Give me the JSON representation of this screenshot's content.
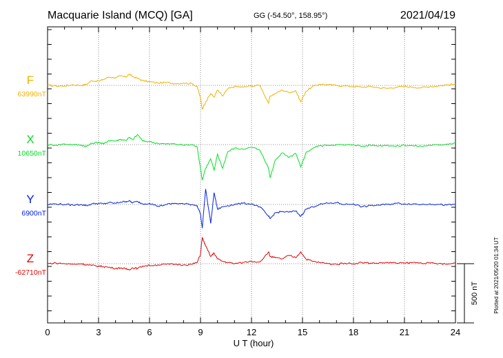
{
  "chart_data": {
    "type": "line",
    "title": "Macquarie Island (MCQ)  [GA]",
    "coords": "GG (-54.50°, 158.95°)",
    "date": "2021/04/19",
    "xlabel": "U T (hour)",
    "xlim": [
      0,
      24
    ],
    "xticks": [
      "0",
      "3",
      "6",
      "9",
      "12",
      "15",
      "18",
      "21",
      "24"
    ],
    "grid": true,
    "scale_label": "500 nT",
    "plotted_label": "Plotted at 2021/05/20 01:34  UT",
    "series": [
      {
        "name": "F",
        "baseline_label": "63990nT",
        "color": "#f0b000",
        "x": [
          0,
          0.5,
          1,
          1.5,
          2,
          2.3,
          2.6,
          3,
          3.3,
          3.6,
          4,
          4.3,
          4.6,
          4.8,
          5,
          5.3,
          5.6,
          6,
          6.5,
          7,
          7.5,
          8,
          8.5,
          8.8,
          9,
          9.1,
          9.3,
          9.6,
          9.8,
          10,
          10.3,
          10.6,
          11,
          11.5,
          12,
          12.5,
          13,
          13.1,
          13.4,
          13.8,
          14.2,
          14.6,
          14.9,
          15.2,
          15.6,
          16,
          16.5,
          17,
          17.5,
          18,
          18.5,
          19,
          19.5,
          20,
          20.5,
          21,
          21.5,
          22,
          22.5,
          23,
          23.5,
          24
        ],
        "y": [
          0,
          -5,
          -5,
          5,
          0,
          10,
          40,
          35,
          50,
          70,
          65,
          80,
          70,
          95,
          75,
          60,
          40,
          30,
          20,
          25,
          15,
          20,
          15,
          -10,
          -110,
          -200,
          -140,
          -70,
          -100,
          -40,
          -90,
          -30,
          -10,
          -15,
          -5,
          0,
          -150,
          -90,
          -70,
          -40,
          -60,
          -45,
          -140,
          -50,
          -10,
          10,
          5,
          0,
          -5,
          -10,
          -15,
          -10,
          -20,
          -25,
          -15,
          -10,
          -15,
          -20,
          -10,
          -5,
          5,
          10
        ]
      },
      {
        "name": "X",
        "baseline_label": "10650nT",
        "color": "#00e020",
        "x": [
          0,
          0.5,
          1,
          1.5,
          2,
          2.3,
          2.6,
          3,
          3.3,
          3.6,
          4,
          4.3,
          4.6,
          4.8,
          5,
          5.3,
          5.6,
          6,
          6.5,
          7,
          7.5,
          8,
          8.5,
          8.8,
          9,
          9.1,
          9.3,
          9.6,
          9.8,
          10,
          10.3,
          10.6,
          11,
          11.5,
          12,
          12.5,
          13,
          13.1,
          13.4,
          13.8,
          14.2,
          14.6,
          14.9,
          15.2,
          15.6,
          16,
          16.5,
          17,
          17.5,
          18,
          18.5,
          19,
          19.5,
          20,
          20.5,
          21,
          21.5,
          22,
          22.5,
          23,
          23.5,
          24
        ],
        "y": [
          0,
          -5,
          5,
          0,
          -5,
          -15,
          10,
          20,
          5,
          35,
          30,
          45,
          35,
          60,
          40,
          85,
          30,
          25,
          10,
          5,
          5,
          -5,
          0,
          -20,
          -200,
          -300,
          -200,
          -120,
          -220,
          -80,
          -200,
          -60,
          -30,
          -40,
          -20,
          -50,
          -200,
          -280,
          -130,
          -70,
          -110,
          -75,
          -190,
          -70,
          -30,
          -10,
          -5,
          0,
          -5,
          0,
          -15,
          -5,
          -10,
          -5,
          -15,
          -5,
          -10,
          -15,
          -5,
          -5,
          5,
          15
        ]
      },
      {
        "name": "Y",
        "baseline_label": "6900nT",
        "color": "#0020e0",
        "x": [
          0,
          0.5,
          1,
          1.5,
          2,
          2.3,
          2.6,
          3,
          3.3,
          3.6,
          4,
          4.3,
          4.6,
          4.8,
          5,
          5.3,
          5.6,
          6,
          6.5,
          7,
          7.5,
          8,
          8.5,
          8.8,
          9,
          9.1,
          9.3,
          9.6,
          9.8,
          10,
          10.3,
          10.6,
          11,
          11.5,
          12,
          12.5,
          13,
          13.1,
          13.4,
          13.8,
          14.2,
          14.6,
          14.9,
          15.2,
          15.6,
          16,
          16.5,
          17,
          17.5,
          18,
          18.5,
          19,
          19.5,
          20,
          20.5,
          21,
          21.5,
          22,
          22.5,
          23,
          23.5,
          24
        ],
        "y": [
          0,
          5,
          0,
          -5,
          0,
          -10,
          5,
          10,
          5,
          15,
          10,
          20,
          25,
          30,
          15,
          25,
          5,
          10,
          -15,
          0,
          10,
          5,
          0,
          -10,
          -80,
          -200,
          130,
          -160,
          100,
          -40,
          -20,
          -10,
          0,
          10,
          5,
          -20,
          -100,
          -120,
          -70,
          -60,
          -65,
          -55,
          -100,
          -40,
          -20,
          0,
          10,
          15,
          0,
          5,
          -20,
          -10,
          -5,
          0,
          10,
          5,
          5,
          0,
          5,
          0,
          -5,
          0
        ]
      },
      {
        "name": "Z",
        "baseline_label": "-62710nT",
        "color": "#e00000",
        "x": [
          0,
          0.5,
          1,
          1.5,
          2,
          2.3,
          2.6,
          3,
          3.3,
          3.6,
          4,
          4.3,
          4.6,
          4.8,
          5,
          5.3,
          5.6,
          6,
          6.5,
          7,
          7.5,
          8,
          8.5,
          8.8,
          9,
          9.1,
          9.3,
          9.6,
          9.8,
          10,
          10.3,
          10.6,
          11,
          11.5,
          12,
          12.5,
          13,
          13.1,
          13.4,
          13.8,
          14.2,
          14.6,
          14.9,
          15.2,
          15.6,
          16,
          16.5,
          17,
          17.5,
          18,
          18.5,
          19,
          19.5,
          20,
          20.5,
          21,
          21.5,
          22,
          22.5,
          23,
          23.5,
          24
        ],
        "y": [
          0,
          5,
          0,
          -5,
          0,
          -10,
          -15,
          -20,
          -25,
          -30,
          -40,
          -35,
          -45,
          -50,
          -35,
          -40,
          -20,
          -15,
          -10,
          -5,
          -5,
          -10,
          -5,
          10,
          80,
          220,
          150,
          60,
          90,
          40,
          20,
          10,
          0,
          10,
          20,
          15,
          100,
          60,
          50,
          40,
          70,
          50,
          100,
          40,
          20,
          10,
          0,
          -5,
          5,
          0,
          10,
          5,
          5,
          10,
          5,
          5,
          10,
          5,
          5,
          0,
          -5,
          5
        ]
      }
    ]
  }
}
